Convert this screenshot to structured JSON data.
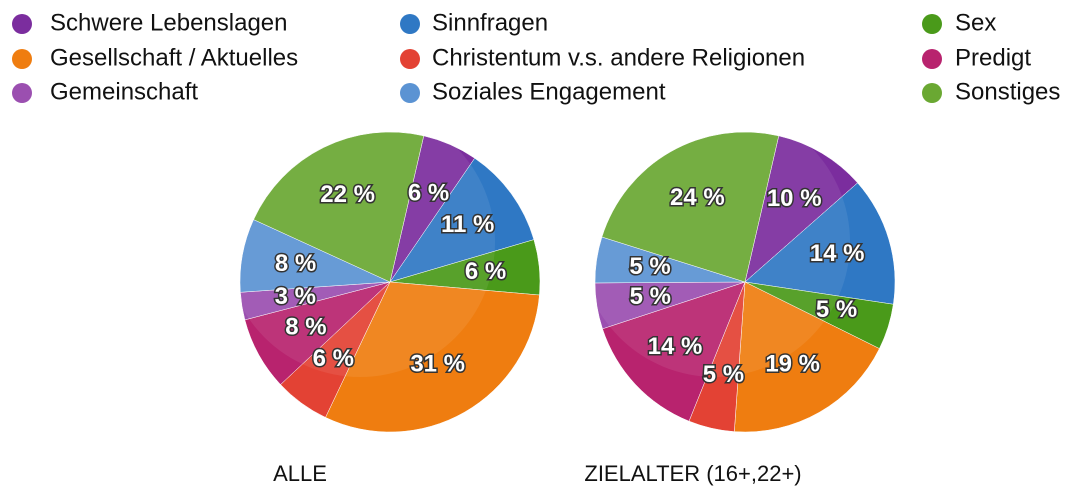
{
  "legend": {
    "names": [
      "Schwere Lebenslagen",
      "Sinnfragen",
      "Sex",
      "Gesellschaft / Aktuelles",
      "Christentum v.s. andere Religionen",
      "Predigt",
      "Gemeinschaft",
      "Soziales Engagement",
      "Sonstiges"
    ],
    "colors": [
      "#7b2d9e",
      "#2f78c4",
      "#4a9a1a",
      "#ef7d10",
      "#e34234",
      "#b8236e",
      "#9b4fb0",
      "#5b93d3",
      "#6aa832"
    ]
  },
  "chart_data": [
    {
      "type": "pie",
      "title": "ALLE",
      "values": [
        6,
        11,
        6,
        31,
        6,
        8,
        3,
        8,
        22
      ],
      "value_labels": [
        "6 %",
        "11 %",
        "6 %",
        "31 %",
        "6 %",
        "8 %",
        "3 %",
        "8 %",
        "22 %"
      ]
    },
    {
      "type": "pie",
      "title": "ZIELALTER (16+,22+)",
      "values": [
        10,
        14,
        5,
        19,
        5,
        14,
        5,
        5,
        24
      ],
      "value_labels": [
        "10 %",
        "14 %",
        "5 %",
        "19 %",
        "5 %",
        "14 %",
        "5 %",
        "5 %",
        "24 %"
      ]
    }
  ]
}
